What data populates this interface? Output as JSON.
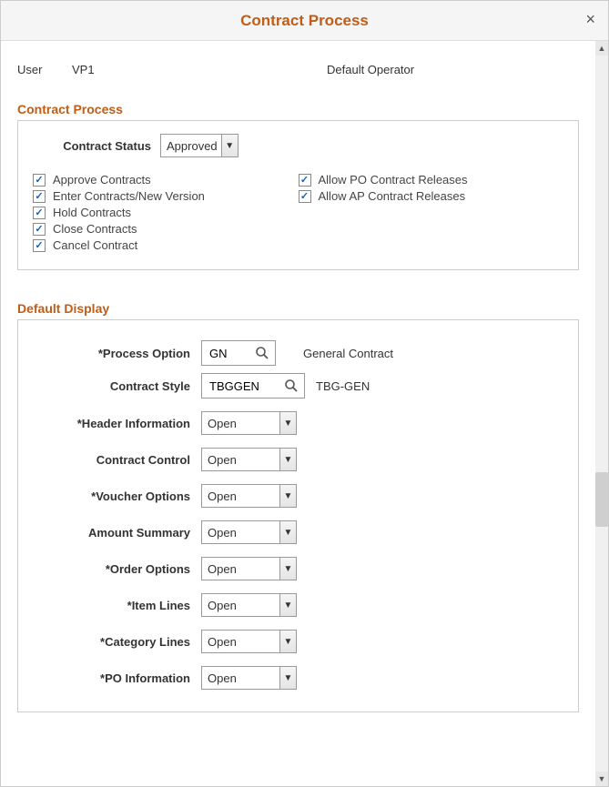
{
  "colors": {
    "accent": "#c05d17",
    "border": "#cccccc",
    "text": "#333333",
    "checkmark": "#1a5fb4",
    "background": "#ffffff",
    "header_bg": "#f5f5f5"
  },
  "header": {
    "title": "Contract Process",
    "close_label": "×"
  },
  "user": {
    "label": "User",
    "value": "VP1",
    "operator_label": "Default Operator"
  },
  "contract_process": {
    "title": "Contract Process",
    "status_label": "Contract Status",
    "status_value": "Approved",
    "left_checks": [
      {
        "label": "Approve Contracts",
        "checked": true
      },
      {
        "label": "Enter Contracts/New Version",
        "checked": true
      },
      {
        "label": "Hold Contracts",
        "checked": true
      },
      {
        "label": "Close Contracts",
        "checked": true
      },
      {
        "label": "Cancel Contract",
        "checked": true
      }
    ],
    "right_checks": [
      {
        "label": "Allow PO Contract Releases",
        "checked": true
      },
      {
        "label": "Allow AP Contract Releases",
        "checked": true
      }
    ]
  },
  "default_display": {
    "title": "Default Display",
    "process_option": {
      "label": "*Process Option",
      "value": "GN",
      "desc": "General Contract"
    },
    "contract_style": {
      "label": "Contract Style",
      "value": "TBGGEN",
      "desc": "TBG-GEN"
    },
    "selects": [
      {
        "label": "*Header Information",
        "value": "Open"
      },
      {
        "label": "Contract Control",
        "value": "Open"
      },
      {
        "label": "*Voucher Options",
        "value": "Open"
      },
      {
        "label": "Amount Summary",
        "value": "Open"
      },
      {
        "label": "*Order Options",
        "value": "Open"
      },
      {
        "label": "*Item Lines",
        "value": "Open"
      },
      {
        "label": "*Category Lines",
        "value": "Open"
      },
      {
        "label": "*PO Information",
        "value": "Open"
      }
    ]
  }
}
